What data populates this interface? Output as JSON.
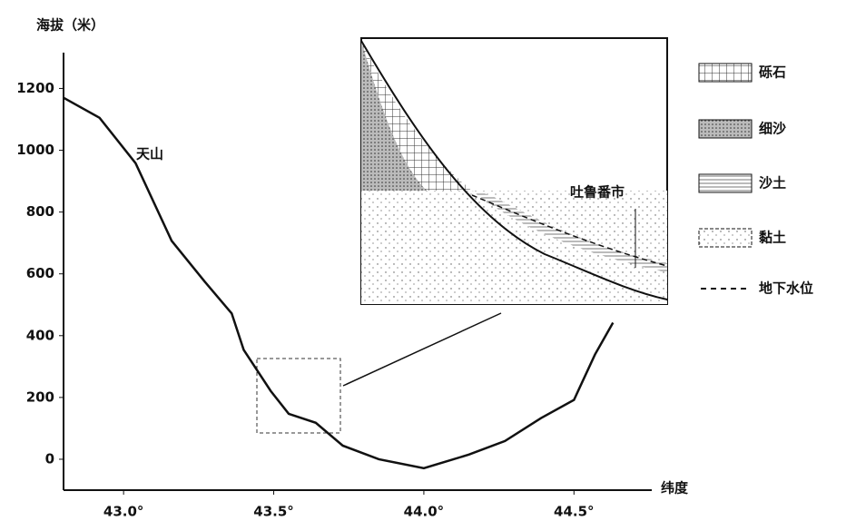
{
  "chart_data": {
    "type": "line",
    "y_label": "海拔（米）",
    "x_label": "纬度",
    "x": [
      42.8,
      42.92,
      43.04,
      43.16,
      43.27,
      43.36,
      43.4,
      43.49,
      43.55,
      43.64,
      43.73,
      43.85,
      44.0,
      44.15,
      44.27,
      44.39,
      44.5,
      44.57,
      44.63
    ],
    "values": [
      1170,
      1105,
      958,
      707,
      575,
      472,
      354,
      221,
      147,
      118,
      44,
      0,
      -29,
      15,
      59,
      133,
      192,
      339,
      442
    ],
    "color": "#111111",
    "xlim": [
      42.8,
      44.75
    ],
    "ylim": [
      -100,
      1310
    ],
    "xticks": [
      {
        "value": 43.0,
        "label": "43.0°"
      },
      {
        "value": 43.5,
        "label": "43.5°"
      },
      {
        "value": 44.0,
        "label": "44.0°"
      },
      {
        "value": 44.5,
        "label": "44.5°"
      }
    ],
    "yticks": [
      0,
      200,
      400,
      600,
      800,
      1000,
      1200
    ],
    "annotations": [
      "天山",
      "吐鲁番市"
    ],
    "legend": [
      "砾石",
      "细沙",
      "沙土",
      "黏土",
      "地下水位"
    ]
  }
}
